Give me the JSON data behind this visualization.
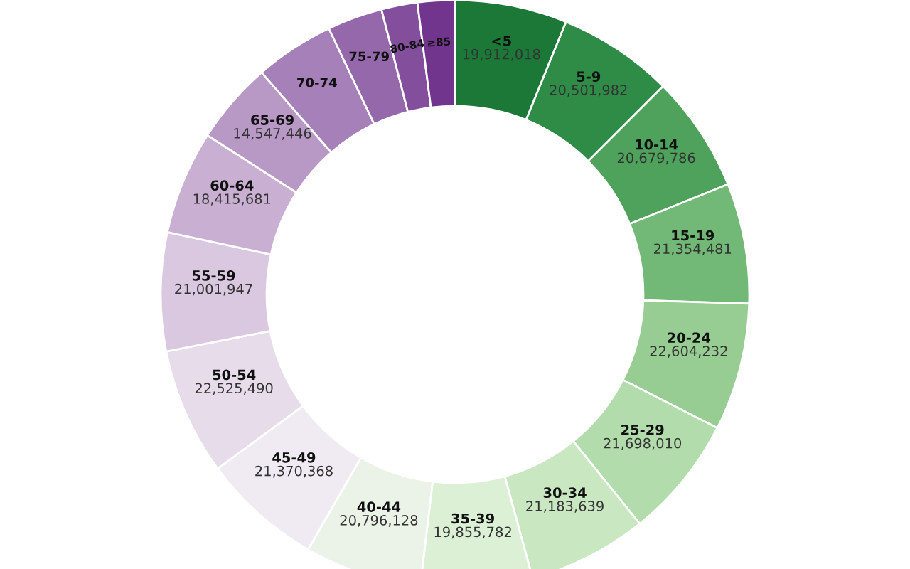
{
  "chart_data": {
    "type": "donut",
    "categories": [
      "<5",
      "5-9",
      "10-14",
      "15-19",
      "20-24",
      "25-29",
      "30-34",
      "35-39",
      "40-44",
      "45-49",
      "50-54",
      "55-59",
      "60-64",
      "65-69",
      "70-74",
      "75-79",
      "80-84",
      "≥85"
    ],
    "values": [
      19912018,
      20501982,
      20679786,
      21354481,
      22604232,
      21698010,
      21183639,
      19855782,
      20796128,
      21370368,
      22525490,
      21001947,
      18415681,
      14547446,
      14100000,
      9800000,
      6400000,
      6600000
    ],
    "value_labels": [
      "19,912,018",
      "20,501,982",
      "20,679,786",
      "21,354,481",
      "22,604,232",
      "21,698,010",
      "21,183,639",
      "19,855,782",
      "20,796,128",
      "21,370,368",
      "22,525,490",
      "21,001,947",
      "18,415,681",
      "14,547,446",
      null,
      null,
      null,
      null
    ],
    "colors": [
      "#1b7837",
      "#2f8c47",
      "#4ea25c",
      "#72b877",
      "#97cc92",
      "#b2dcab",
      "#c9e8c2",
      "#dcf0d6",
      "#ebf2e8",
      "#f0eaf2",
      "#e6dcea",
      "#dac8e0",
      "#c9b0d3",
      "#b898c5",
      "#a680b8",
      "#9568ab",
      "#834f9c",
      "#71358d"
    ]
  }
}
